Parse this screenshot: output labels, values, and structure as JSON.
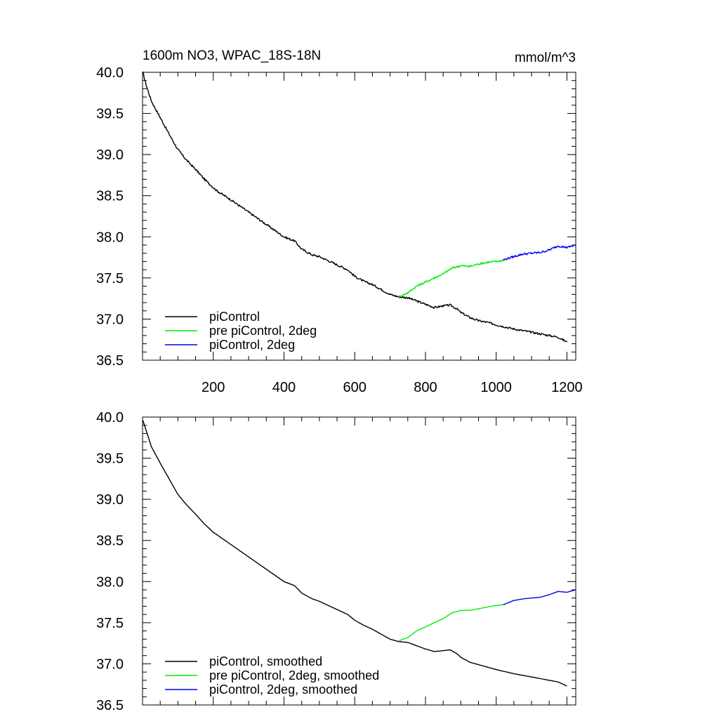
{
  "chart_data": [
    {
      "type": "line",
      "title": "1600m NO3, WPAC_18S-18N",
      "units": "mmol/m^3",
      "xlim": [
        0,
        1225
      ],
      "ylim": [
        36.5,
        40.0
      ],
      "xticks": [
        200,
        400,
        600,
        800,
        1000,
        1200
      ],
      "xtick_labels": [
        "200",
        "400",
        "600",
        "800",
        "1000",
        "1200"
      ],
      "yticks": [
        36.5,
        37.0,
        37.5,
        38.0,
        38.5,
        39.0,
        39.5,
        40.0
      ],
      "ytick_labels": [
        "36.5",
        "37.0",
        "37.5",
        "38.0",
        "38.5",
        "39.0",
        "39.5",
        "40.0"
      ],
      "grid": false,
      "legend_position": "bottom-left",
      "series": [
        {
          "name": "piControl",
          "color": "#000000",
          "x": [
            1,
            10,
            25,
            50,
            75,
            100,
            125,
            150,
            175,
            200,
            210,
            250,
            300,
            350,
            400,
            430,
            450,
            480,
            500,
            550,
            580,
            600,
            625,
            650,
            675,
            700,
            725,
            750,
            775,
            800,
            825,
            850,
            870,
            890,
            900,
            925,
            950,
            975,
            1000,
            1050,
            1100,
            1150,
            1175,
            1200
          ],
          "y": [
            40.0,
            39.85,
            39.65,
            39.45,
            39.25,
            39.06,
            38.93,
            38.82,
            38.7,
            38.6,
            38.56,
            38.45,
            38.3,
            38.15,
            38.0,
            37.95,
            37.85,
            37.78,
            37.76,
            37.66,
            37.6,
            37.52,
            37.46,
            37.42,
            37.36,
            37.3,
            37.27,
            37.26,
            37.22,
            37.18,
            37.14,
            37.16,
            37.17,
            37.12,
            37.08,
            37.02,
            36.98,
            36.96,
            36.93,
            36.88,
            36.84,
            36.8,
            36.78,
            36.72
          ]
        },
        {
          "name": "pre piControl, 2deg",
          "color": "#00ee00",
          "x": [
            725,
            750,
            775,
            800,
            825,
            850,
            875,
            900,
            925,
            950,
            975,
            1000,
            1025
          ],
          "y": [
            37.27,
            37.32,
            37.4,
            37.45,
            37.5,
            37.55,
            37.62,
            37.65,
            37.64,
            37.67,
            37.69,
            37.7,
            37.72
          ]
        },
        {
          "name": "piControl, 2deg",
          "color": "#0000ee",
          "x": [
            1020,
            1050,
            1075,
            1100,
            1125,
            1150,
            1175,
            1200,
            1225
          ],
          "y": [
            37.72,
            37.76,
            37.79,
            37.8,
            37.81,
            37.84,
            37.89,
            37.87,
            37.9
          ]
        }
      ]
    },
    {
      "type": "line",
      "xlim": [
        0,
        1225
      ],
      "ylim": [
        36.5,
        40.0
      ],
      "xticks": [
        200,
        400,
        600,
        800,
        1000,
        1200
      ],
      "yticks": [
        36.5,
        37.0,
        37.5,
        38.0,
        38.5,
        39.0,
        39.5,
        40.0
      ],
      "ytick_labels": [
        "36.5",
        "37.0",
        "37.5",
        "38.0",
        "38.5",
        "39.0",
        "39.5",
        "40.0"
      ],
      "grid": false,
      "legend_position": "bottom-left",
      "series": [
        {
          "name": "piControl, smoothed",
          "color": "#000000",
          "x": [
            1,
            10,
            25,
            50,
            75,
            100,
            125,
            150,
            175,
            200,
            210,
            250,
            300,
            350,
            400,
            430,
            450,
            480,
            500,
            550,
            580,
            600,
            625,
            650,
            675,
            700,
            725,
            750,
            775,
            800,
            825,
            850,
            870,
            890,
            900,
            925,
            950,
            975,
            1000,
            1050,
            1100,
            1150,
            1175,
            1200
          ],
          "y": [
            39.96,
            39.84,
            39.64,
            39.44,
            39.25,
            39.06,
            38.93,
            38.82,
            38.7,
            38.6,
            38.57,
            38.45,
            38.3,
            38.15,
            38.0,
            37.95,
            37.86,
            37.79,
            37.76,
            37.66,
            37.6,
            37.53,
            37.47,
            37.42,
            37.36,
            37.3,
            37.27,
            37.26,
            37.22,
            37.18,
            37.15,
            37.16,
            37.17,
            37.12,
            37.08,
            37.02,
            36.99,
            36.96,
            36.93,
            36.88,
            36.84,
            36.8,
            36.78,
            36.73
          ]
        },
        {
          "name": "pre piControl, 2deg, smoothed",
          "color": "#00ee00",
          "x": [
            725,
            750,
            775,
            800,
            825,
            850,
            875,
            900,
            925,
            950,
            975,
            1000,
            1025
          ],
          "y": [
            37.28,
            37.32,
            37.4,
            37.45,
            37.5,
            37.55,
            37.62,
            37.65,
            37.65,
            37.67,
            37.69,
            37.71,
            37.72
          ]
        },
        {
          "name": "piControl, 2deg, smoothed",
          "color": "#0000ee",
          "x": [
            1020,
            1050,
            1075,
            1100,
            1125,
            1150,
            1175,
            1200,
            1225
          ],
          "y": [
            37.72,
            37.77,
            37.79,
            37.8,
            37.81,
            37.84,
            37.88,
            37.87,
            37.9
          ]
        }
      ]
    }
  ]
}
